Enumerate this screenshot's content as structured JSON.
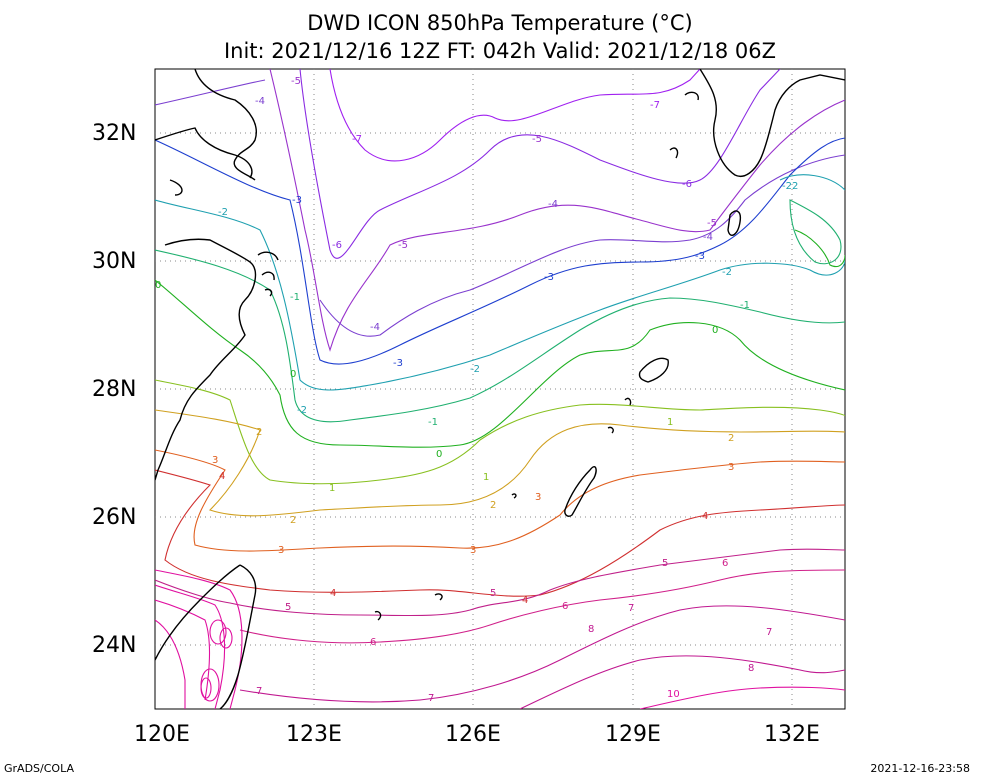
{
  "title": {
    "line1": "DWD ICON 850hPa Temperature (°C)",
    "line2": "Init: 2021/12/16 12Z  FT: 042h  Valid: 2021/12/18 06Z"
  },
  "axes": {
    "lon_ticks": [
      "120E",
      "123E",
      "126E",
      "129E",
      "132E"
    ],
    "lat_ticks": [
      "32N",
      "30N",
      "28N",
      "26N",
      "24N"
    ],
    "lon_range": [
      120,
      133
    ],
    "lat_range": [
      23,
      33
    ],
    "grid": "dotted"
  },
  "contour_labels": [
    "-7",
    "-6",
    "-5",
    "-4",
    "-3",
    "-2",
    "-1",
    "0",
    "1",
    "2",
    "3",
    "4",
    "5",
    "6",
    "7",
    "8",
    "10",
    "-22"
  ],
  "colors": {
    "-7": "#a020f0",
    "-6": "#8a2be2",
    "-5": "#9933cc",
    "-4": "#7b3fd0",
    "-3": "#1e3fcf",
    "-2": "#1fa0b0",
    "-1": "#20b070",
    "0": "#20b020",
    "1": "#88c020",
    "2": "#d0a020",
    "3": "#e06020",
    "4": "#d03030",
    "5": "#c0208a",
    "6": "#d0208a",
    "7": "#c01890",
    "8": "#c01890",
    "10": "#e010a0"
  },
  "footer": {
    "left": "GrADS/COLA",
    "right": "2021-12-16-23:58"
  }
}
